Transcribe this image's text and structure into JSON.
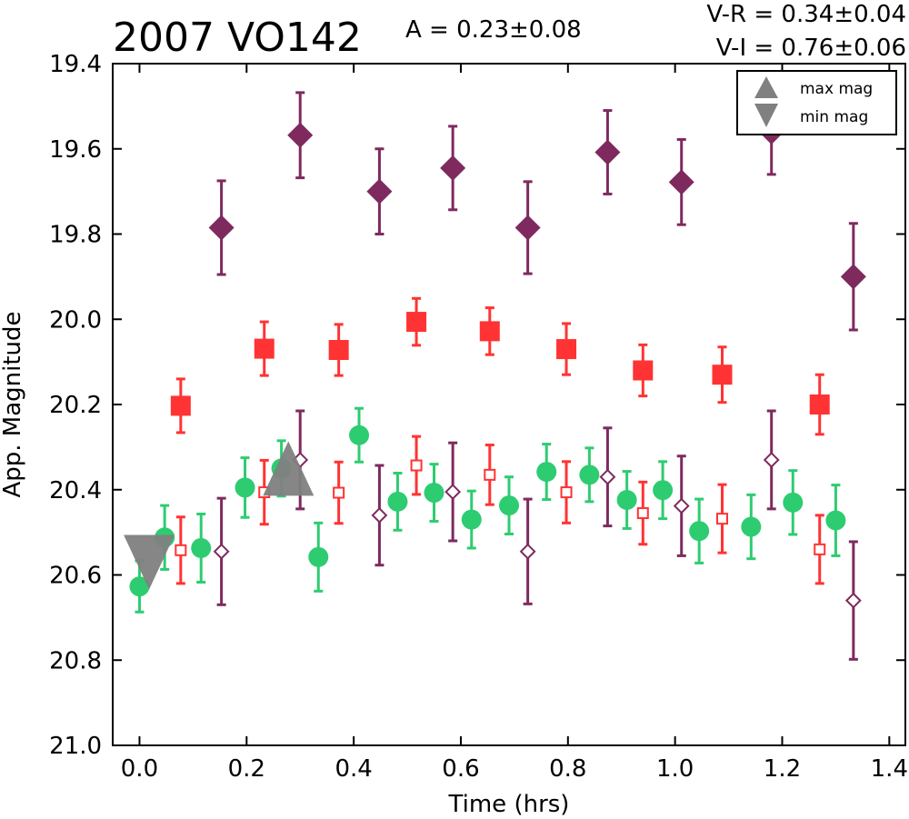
{
  "title": "2007 VO142",
  "amplitude_label": "A  = 0.23±0.08",
  "color_vr_label": "V-R = 0.34±0.04",
  "color_vi_label": "V-I  = 0.76±0.06",
  "chart_data": {
    "type": "scatter",
    "xlabel": "Time (hrs)",
    "ylabel": "App. Magnitude",
    "xlim": [
      -0.05,
      1.43
    ],
    "ylim": [
      21.0,
      19.4
    ],
    "y_inverted": true,
    "xticks": [
      "0.0",
      "0.2",
      "0.4",
      "0.6",
      "0.8",
      "1.0",
      "1.2",
      "1.4"
    ],
    "yticks": [
      "19.4",
      "19.6",
      "19.8",
      "20.0",
      "20.2",
      "20.4",
      "20.6",
      "20.8",
      "21.0"
    ],
    "grid": false,
    "legend": {
      "placement": "top-right",
      "entries": [
        {
          "label": "max mag",
          "marker": "triangle-up"
        },
        {
          "label": "min mag",
          "marker": "triangle-down"
        }
      ]
    },
    "colors": {
      "green": "#2ecc71",
      "red": "#ff3333",
      "purple": "#7e2a5e",
      "gray": "#808080"
    },
    "series": [
      {
        "marker": "circle-filled",
        "color": "#2ecc71",
        "points": [
          {
            "x": 0.0,
            "y": 20.627,
            "err": 0.06
          },
          {
            "x": 0.047,
            "y": 20.512,
            "err": 0.075
          },
          {
            "x": 0.115,
            "y": 20.537,
            "err": 0.08
          },
          {
            "x": 0.197,
            "y": 20.395,
            "err": 0.07
          },
          {
            "x": 0.265,
            "y": 20.35,
            "err": 0.065
          },
          {
            "x": 0.334,
            "y": 20.558,
            "err": 0.08
          },
          {
            "x": 0.41,
            "y": 20.272,
            "err": 0.063
          },
          {
            "x": 0.482,
            "y": 20.428,
            "err": 0.067
          },
          {
            "x": 0.55,
            "y": 20.407,
            "err": 0.067
          },
          {
            "x": 0.62,
            "y": 20.47,
            "err": 0.067
          },
          {
            "x": 0.69,
            "y": 20.437,
            "err": 0.067
          },
          {
            "x": 0.76,
            "y": 20.358,
            "err": 0.065
          },
          {
            "x": 0.84,
            "y": 20.365,
            "err": 0.063
          },
          {
            "x": 0.91,
            "y": 20.424,
            "err": 0.067
          },
          {
            "x": 0.977,
            "y": 20.401,
            "err": 0.067
          },
          {
            "x": 1.045,
            "y": 20.497,
            "err": 0.075
          },
          {
            "x": 1.142,
            "y": 20.487,
            "err": 0.075
          },
          {
            "x": 1.22,
            "y": 20.43,
            "err": 0.075
          },
          {
            "x": 1.3,
            "y": 20.472,
            "err": 0.083
          }
        ]
      },
      {
        "marker": "square-filled",
        "color": "#ff3333",
        "points": [
          {
            "x": 0.077,
            "y": 20.203,
            "err": 0.063
          },
          {
            "x": 0.233,
            "y": 20.069,
            "err": 0.063
          },
          {
            "x": 0.372,
            "y": 20.072,
            "err": 0.06
          },
          {
            "x": 0.517,
            "y": 20.006,
            "err": 0.055
          },
          {
            "x": 0.654,
            "y": 20.028,
            "err": 0.055
          },
          {
            "x": 0.797,
            "y": 20.07,
            "err": 0.06
          },
          {
            "x": 0.94,
            "y": 20.12,
            "err": 0.06
          },
          {
            "x": 1.088,
            "y": 20.13,
            "err": 0.065
          },
          {
            "x": 1.27,
            "y": 20.2,
            "err": 0.07
          }
        ]
      },
      {
        "marker": "square-open",
        "color": "#ff3333",
        "points": [
          {
            "x": 0.077,
            "y": 20.542,
            "err": 0.078
          },
          {
            "x": 0.233,
            "y": 20.406,
            "err": 0.075
          },
          {
            "x": 0.372,
            "y": 20.407,
            "err": 0.072
          },
          {
            "x": 0.517,
            "y": 20.343,
            "err": 0.068
          },
          {
            "x": 0.654,
            "y": 20.365,
            "err": 0.07
          },
          {
            "x": 0.797,
            "y": 20.406,
            "err": 0.072
          },
          {
            "x": 0.94,
            "y": 20.455,
            "err": 0.073
          },
          {
            "x": 1.088,
            "y": 20.468,
            "err": 0.08
          },
          {
            "x": 1.27,
            "y": 20.54,
            "err": 0.08
          }
        ]
      },
      {
        "marker": "diamond-filled",
        "color": "#7e2a5e",
        "points": [
          {
            "x": 0.153,
            "y": 19.785,
            "err": 0.11
          },
          {
            "x": 0.3,
            "y": 19.568,
            "err": 0.1
          },
          {
            "x": 0.448,
            "y": 19.7,
            "err": 0.1
          },
          {
            "x": 0.585,
            "y": 19.645,
            "err": 0.098
          },
          {
            "x": 0.725,
            "y": 19.785,
            "err": 0.108
          },
          {
            "x": 0.874,
            "y": 19.608,
            "err": 0.098
          },
          {
            "x": 1.012,
            "y": 19.678,
            "err": 0.1
          },
          {
            "x": 1.18,
            "y": 19.56,
            "err": 0.1
          },
          {
            "x": 1.333,
            "y": 19.9,
            "err": 0.125
          }
        ]
      },
      {
        "marker": "diamond-open",
        "color": "#7e2a5e",
        "points": [
          {
            "x": 0.153,
            "y": 20.545,
            "err": 0.125
          },
          {
            "x": 0.3,
            "y": 20.33,
            "err": 0.115
          },
          {
            "x": 0.448,
            "y": 20.46,
            "err": 0.117
          },
          {
            "x": 0.585,
            "y": 20.405,
            "err": 0.115
          },
          {
            "x": 0.725,
            "y": 20.545,
            "err": 0.123
          },
          {
            "x": 0.874,
            "y": 20.37,
            "err": 0.115
          },
          {
            "x": 1.012,
            "y": 20.438,
            "err": 0.117
          },
          {
            "x": 1.18,
            "y": 20.33,
            "err": 0.115
          },
          {
            "x": 1.333,
            "y": 20.66,
            "err": 0.138
          }
        ]
      }
    ],
    "extrema": [
      {
        "label": "max mag",
        "marker": "triangle-up",
        "x": 0.278,
        "y": 20.35
      },
      {
        "label": "min mag",
        "marker": "triangle-down",
        "x": 0.018,
        "y": 20.57
      }
    ]
  }
}
